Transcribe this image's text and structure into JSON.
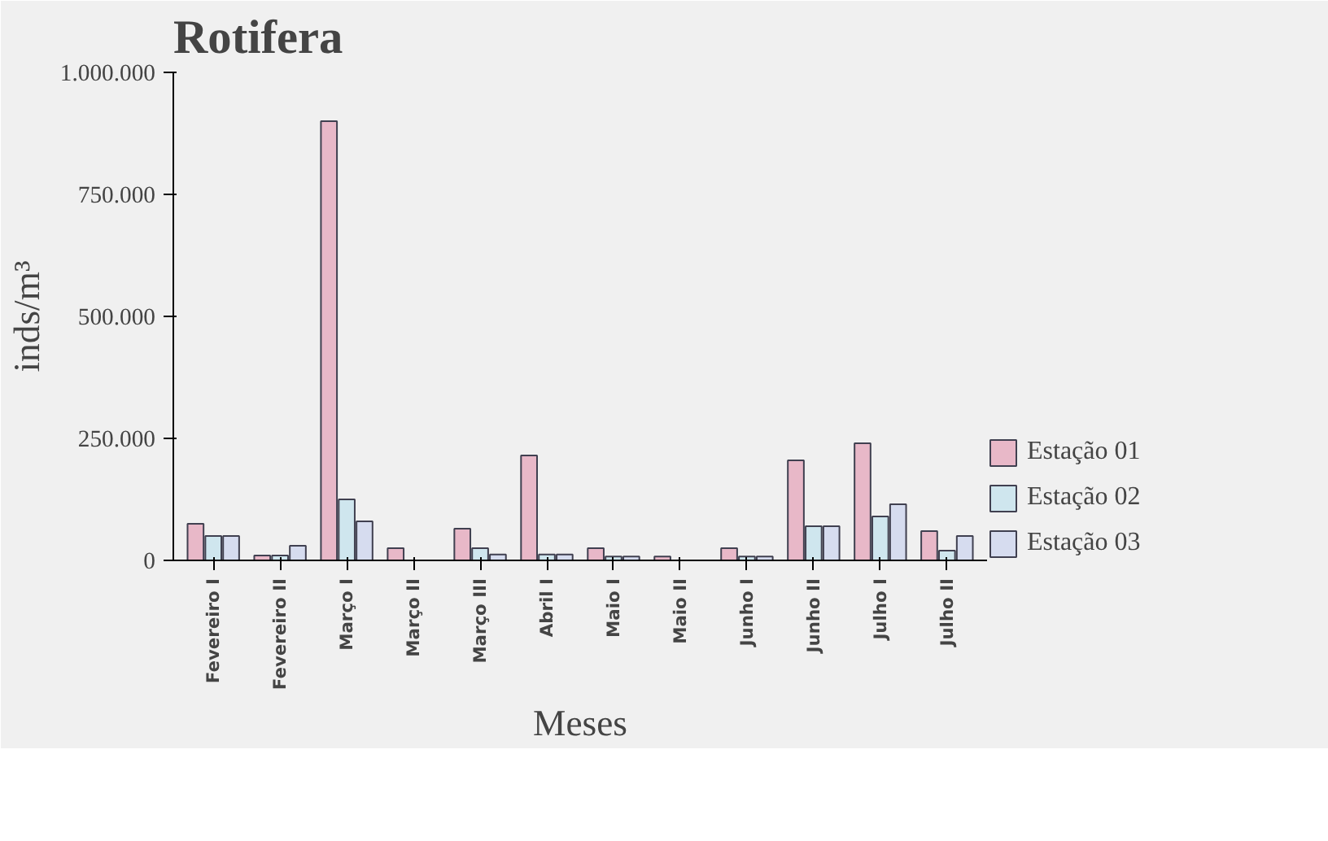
{
  "chart_data": {
    "type": "bar",
    "title": "Rotifera",
    "xlabel": "Meses",
    "ylabel": "inds/m³",
    "categories": [
      "Fevereiro I",
      "Fevereiro II",
      "Março I",
      "Março II",
      "Março III",
      "Abril I",
      "Maio I",
      "Maio II",
      "Junho I",
      "Junho II",
      "Julho I",
      "Julho II"
    ],
    "series": [
      {
        "name": "Estação 01",
        "color": "#e8b8c8",
        "values": [
          75000,
          10000,
          900000,
          25000,
          65000,
          215000,
          25000,
          8000,
          25000,
          205000,
          240000,
          60000
        ]
      },
      {
        "name": "Estação 02",
        "color": "#cfe6ee",
        "values": [
          50000,
          10000,
          125000,
          null,
          25000,
          12000,
          8000,
          null,
          8000,
          70000,
          90000,
          20000
        ]
      },
      {
        "name": "Estação 03",
        "color": "#d6dcef",
        "values": [
          50000,
          30000,
          80000,
          null,
          12000,
          12000,
          8000,
          null,
          8000,
          70000,
          115000,
          50000
        ]
      }
    ],
    "ylim": [
      0,
      1000000
    ],
    "yticks": [
      0,
      {
        "value": 250000,
        "label": "250.000"
      },
      {
        "value": 500000,
        "label": "500.000"
      },
      {
        "value": 750000,
        "label": "750.000"
      },
      {
        "value": 1000000,
        "label": "1.000.000"
      }
    ],
    "grid": false,
    "legend": "bottom right"
  }
}
